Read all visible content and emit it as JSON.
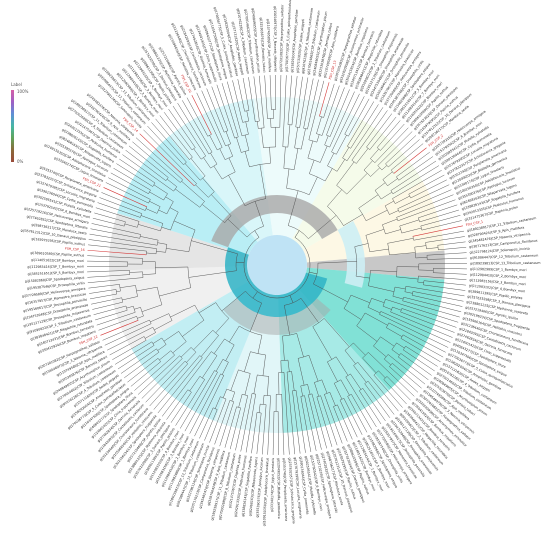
{
  "legend": {
    "title": "Label",
    "max_label": "100%",
    "min_label": "0%",
    "gradient_colors": [
      "#d65fa7",
      "#9f5fc4",
      "#5f8fd6",
      "#46b7a6",
      "#5fa35a",
      "#8a6a3a",
      "#9a4a3a"
    ]
  },
  "colors": {
    "branch": "#4a4a4a",
    "highlight_branch": "#d43a3a",
    "highlight_label": "#cc1f1f",
    "inner_disc": "#bfe3f5",
    "ring_dark": "#2fb3c6",
    "ring_grey": "#a7a7a7",
    "ring_light": "#cdeef4"
  },
  "sectors": [
    {
      "from": -5,
      "to": 5,
      "color": "#9a9a9a"
    },
    {
      "from": 5,
      "to": 48,
      "color": "#19c9b4"
    },
    {
      "from": 48,
      "to": 88,
      "color": "#5fd9d2"
    },
    {
      "from": 88,
      "to": 112,
      "color": "#c9eff3"
    },
    {
      "from": 112,
      "to": 150,
      "color": "#8fe0ea"
    },
    {
      "from": 150,
      "to": 178,
      "color": "#e4e4e4"
    },
    {
      "from": 178,
      "to": 198,
      "color": "#cfcfcf"
    },
    {
      "from": 198,
      "to": 230,
      "color": "#7fe0ec"
    },
    {
      "from": 230,
      "to": 262,
      "color": "#b9eef4"
    },
    {
      "from": 262,
      "to": 300,
      "color": "#dff7f7"
    },
    {
      "from": 300,
      "to": 330,
      "color": "#ecf7d8"
    },
    {
      "from": 330,
      "to": 355,
      "color": "#fbf3cf"
    }
  ],
  "labels": {
    "highlighted_left": [
      "FSH_CSP_12",
      "FSH_CSP_16",
      "FSH_CSP_11",
      "FSH_CSP_14",
      "FSH_CSP_10"
    ],
    "highlighted_right": [
      "FSH_CSP_13",
      "FSH_CSP_2",
      "FSH_CSP_1"
    ],
    "leaves": [
      "gi|170036773|CSP_5_Culex_quinquefasciatus",
      "gi|158292004|CSP_Anopheles_gambiae",
      "gi|157131820|CSP_Aedes_aegypti",
      "gi|91076228|CSP_4_Tribolium_castaneum",
      "gi|270014662|CSP_Tribolium_castaneum",
      "gi|240849055|CSP_Acyrthosiphon_pisum",
      "gi|325303876|CSP_Bemisia_tabaci",
      "gi|110749589|CSP_Apis_mellifera",
      "gi|156546975|CSP_3_Nasonia_vitripennis",
      "gi|307201082|CSP_Harpegnathos_saltator",
      "gi|332020938|CSP_Acromyrmex_echinatior",
      "gi|350415924|CSP_Bombus_impatiens",
      "gi|340713431|CSP_Bombus_terrestris",
      "gi|383848421|CSP_Megachile_rotundata",
      "gi|91090822|CSP_2_Tribolium_castaneum",
      "gi|195127129|CSP_Drosophila_mojavensis",
      "gi|194753948|CSP_Drosophila_ananassae",
      "gi|195160617|CSP_Drosophila_persimilis",
      "gi|16357957|CSP_Mamestra_brassicae",
      "gi|37729589|CSP_Helicoverpa_armigera",
      "gi|195387546|CSP_Drosophila_virilis",
      "gi|15082068|CSP_Spodoptera_exigua",
      "gi|385251651|CSP_5_Bombyx_mori",
      "gi|112983414|CSP_7_Bombyx_mori",
      "gi|114051622|CSP_Bombyx_mori",
      "gi|389610589|CSP_Papilio_xuthus",
      "gi|357623624|CSP_Danaus_plexippus",
      "gi|183979295|CSP_Papilio_xuthus",
      "gi|357612312|CSP_10_Danaus_plexippus",
      "gi|298736217|CSP_Manduca_sexta",
      "gi|27462832|CSP_Spodoptera_littoralis",
      "gi|225719216|CSP_Helicoverpa_armigera",
      "gi|153792542|CSP_6_Bombyx_mori",
      "gi|302595541|CSP_Plutella_xylostella",
      "gi|390136044|CSP_Cydia_pomonella",
      "gi|157679395|CSP_Locusta_migratoria",
      "gi|237832357|CSP_Schistocerca_gregaria",
      "gi|5353740|CSP_Periplaneta_americana",
      "gi|12049052|CSP_Blattella_germanica",
      "gi|33340174|CSP_Lygus_lineolaris",
      "gi|109150350|CSP_Adelphocoris_lineolatus",
      "gi|355390376|CSP_Apolygus_lucorum",
      "gi|82468163|CSP_Nilaparvata_lugens",
      "gi|338826143|CSP_Sogatella_furcifera",
      "gi|242013335|CSP_Pediculus_humanus",
      "gi|321475367|CSP_Daphnia_pulex",
      "gi|270002689|CSP_8_Tribolium_castaneum",
      "gi|189238917|CSP_11_Tribolium_castaneum",
      "gi|328790424|CSP_9_Apis_mellifera",
      "gi|345482476|CSP_Nasonia_vitripennis",
      "gi|307176213|CSP_Camponotus_floridanus",
      "gi|322796124|CSP_Solenopsis_invicta",
      "gi|91086447|CSP_12_Tribolium_castaneum",
      "gi|189239813|CSP_13_Tribolium_castaneum",
      "gi|112982989|CSP_1_Bombyx_mori",
      "gi|112984410|CSP_2_Bombyx_mori",
      "gi|112983156|CSP_3_Bombyx_mori",
      "gi|112983102|CSP_4_Bombyx_mori",
      "gi|389611395|CSP_Papilio_polytes",
      "gi|357623298|CSP_3_Danaus_plexippus",
      "gi|238801225|CSP_Mythimna_separata",
      "gi|257219466|CSP_Agrotis_ipsilon",
      "gi|302196234|CSP_Spodoptera_frugiperda",
      "gi|155966164|CSP_Heliothis_virescens",
      "gi|31236440|CSP_Choristoneura_fumiferana",
      "gi|21842093|CSP_Cactoblastis_cactorum",
      "gi|27462834|CSP_Ostrinia_furnacalis",
      "gi|124001425|CSP_Chilo_suppressalis",
      "gi|40643277|CSP_Spodoptera_litura",
      "gi|110347506|CSP_Spodoptera_exigua"
    ]
  }
}
